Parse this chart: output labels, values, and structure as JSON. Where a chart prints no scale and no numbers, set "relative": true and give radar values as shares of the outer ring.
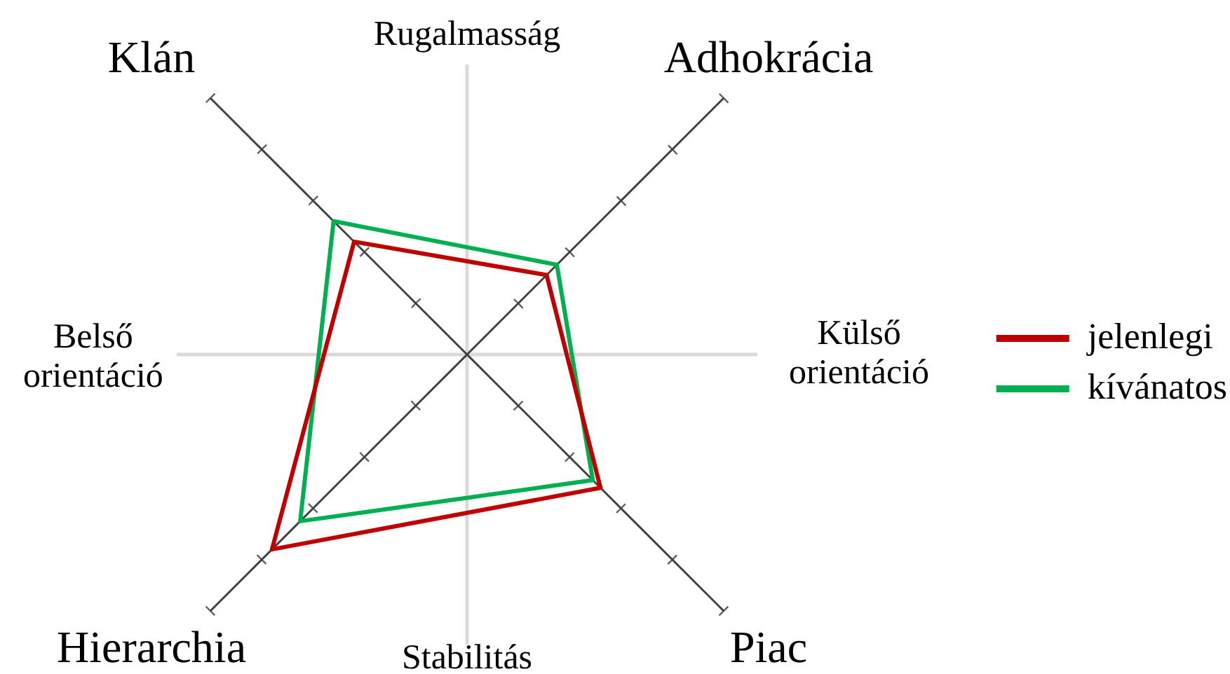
{
  "chart_data": {
    "type": "radar",
    "categories": [
      "Klán",
      "Adhokrácia",
      "Piac",
      "Hierarchia"
    ],
    "series": [
      {
        "name": "jelenlegi",
        "color": "#c00000",
        "values": [
          0.44,
          0.31,
          0.52,
          0.76
        ]
      },
      {
        "name": "kívánatos",
        "color": "#00b050",
        "values": [
          0.52,
          0.35,
          0.49,
          0.65
        ]
      }
    ],
    "relative": true,
    "grid": true,
    "annotations": [
      "Rugalmasság",
      "Stabilitás",
      "Belső orientáció",
      "Külső orientáció"
    ],
    "legend": "right",
    "marker": "none"
  }
}
